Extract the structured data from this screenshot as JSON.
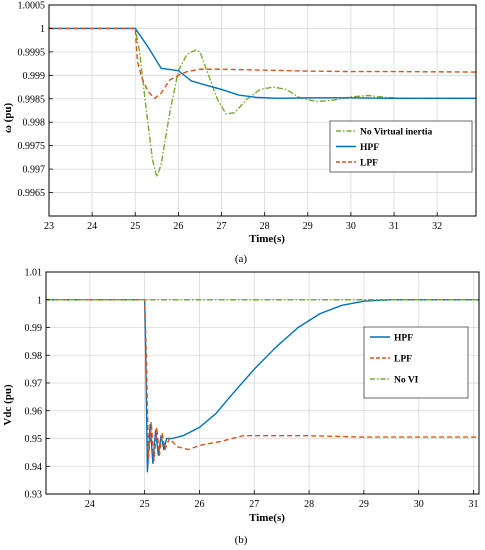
{
  "chart_data": [
    {
      "type": "line",
      "caption": "(a)",
      "xlabel": "Time(s)",
      "ylabel": "ω (pu)",
      "xlim": [
        23,
        32.9
      ],
      "ylim": [
        0.996,
        1.0005
      ],
      "xticks": [
        "23",
        "24",
        "25",
        "26",
        "27",
        "28",
        "29",
        "30",
        "31",
        "32"
      ],
      "yticks": [
        "0.9965",
        "0.997",
        "0.9975",
        "0.998",
        "0.9985",
        "0.999",
        "0.9995",
        "1",
        "1.0005"
      ],
      "grid": true,
      "legend_position": "right",
      "series": [
        {
          "name": "No Virtual inertia",
          "color": "#77ac30",
          "style": "dash-dot",
          "points": [
            [
              23,
              1.0
            ],
            [
              25,
              1.0
            ],
            [
              25.1,
              0.9995
            ],
            [
              25.25,
              0.9983
            ],
            [
              25.4,
              0.9972
            ],
            [
              25.5,
              0.99683
            ],
            [
              25.6,
              0.9971
            ],
            [
              25.8,
              0.9982
            ],
            [
              26.0,
              0.9991
            ],
            [
              26.2,
              0.99945
            ],
            [
              26.4,
              0.99954
            ],
            [
              26.5,
              0.9995
            ],
            [
              26.7,
              0.999
            ],
            [
              26.9,
              0.9985
            ],
            [
              27.1,
              0.99818
            ],
            [
              27.3,
              0.9982
            ],
            [
              27.6,
              0.9985
            ],
            [
              27.9,
              0.9987
            ],
            [
              28.2,
              0.99875
            ],
            [
              28.5,
              0.9987
            ],
            [
              28.8,
              0.99853
            ],
            [
              29.2,
              0.99844
            ],
            [
              29.6,
              0.99847
            ],
            [
              30.0,
              0.99854
            ],
            [
              30.4,
              0.99857
            ],
            [
              30.8,
              0.99853
            ],
            [
              31.2,
              0.99851
            ],
            [
              32.9,
              0.99851
            ]
          ]
        },
        {
          "name": "HPF",
          "color": "#0072bd",
          "style": "solid",
          "points": [
            [
              23,
              1.0
            ],
            [
              25,
              1.0
            ],
            [
              25.3,
              0.9996
            ],
            [
              25.6,
              0.99915
            ],
            [
              26.0,
              0.9991
            ],
            [
              26.3,
              0.99888
            ],
            [
              26.6,
              0.9988
            ],
            [
              27.0,
              0.9987
            ],
            [
              27.4,
              0.99858
            ],
            [
              27.8,
              0.99853
            ],
            [
              28.3,
              0.99851
            ],
            [
              29.0,
              0.99852
            ],
            [
              30.0,
              0.99852
            ],
            [
              31.0,
              0.99851
            ],
            [
              32.9,
              0.99851
            ]
          ]
        },
        {
          "name": "LPF",
          "color": "#d95319",
          "style": "dash",
          "points": [
            [
              23,
              1.0
            ],
            [
              25,
              1.0
            ],
            [
              25.05,
              0.9993
            ],
            [
              25.15,
              0.99895
            ],
            [
              25.3,
              0.99865
            ],
            [
              25.45,
              0.99851
            ],
            [
              25.6,
              0.99862
            ],
            [
              25.8,
              0.9989
            ],
            [
              26.0,
              0.999
            ],
            [
              26.2,
              0.99908
            ],
            [
              26.5,
              0.99913
            ],
            [
              27.0,
              0.99913
            ],
            [
              28.0,
              0.99911
            ],
            [
              29.0,
              0.99909
            ],
            [
              30.0,
              0.99908
            ],
            [
              31.0,
              0.99908
            ],
            [
              32.9,
              0.99907
            ]
          ]
        }
      ]
    },
    {
      "type": "line",
      "caption": "(b)",
      "xlabel": "Time(s)",
      "ylabel": "Vdc (pu)",
      "xlim": [
        23.2,
        31.1
      ],
      "ylim": [
        0.93,
        1.01
      ],
      "xticks": [
        "24",
        "25",
        "26",
        "27",
        "28",
        "29",
        "30",
        "31"
      ],
      "yticks": [
        "0.93",
        "0.94",
        "0.95",
        "0.96",
        "0.97",
        "0.98",
        "0.99",
        "1",
        "1.01"
      ],
      "grid": true,
      "legend_position": "right",
      "series": [
        {
          "name": "HPF",
          "color": "#0072bd",
          "style": "solid",
          "points": [
            [
              23.2,
              1.0
            ],
            [
              25.0,
              1.0
            ],
            [
              25.02,
              0.98
            ],
            [
              25.05,
              0.938
            ],
            [
              25.1,
              0.955
            ],
            [
              25.15,
              0.941
            ],
            [
              25.2,
              0.953
            ],
            [
              25.25,
              0.944
            ],
            [
              25.3,
              0.951
            ],
            [
              25.35,
              0.946
            ],
            [
              25.4,
              0.95
            ],
            [
              25.5,
              0.95
            ],
            [
              25.7,
              0.951
            ],
            [
              26.0,
              0.954
            ],
            [
              26.3,
              0.959
            ],
            [
              26.6,
              0.966
            ],
            [
              27.0,
              0.975
            ],
            [
              27.4,
              0.983
            ],
            [
              27.8,
              0.99
            ],
            [
              28.2,
              0.995
            ],
            [
              28.6,
              0.998
            ],
            [
              29.0,
              0.9995
            ],
            [
              29.5,
              1.0
            ],
            [
              31.1,
              1.0
            ]
          ]
        },
        {
          "name": "LPF",
          "color": "#d95319",
          "style": "dash",
          "points": [
            [
              23.2,
              1.0
            ],
            [
              25.0,
              1.0
            ],
            [
              25.03,
              0.98
            ],
            [
              25.07,
              0.943
            ],
            [
              25.12,
              0.956
            ],
            [
              25.17,
              0.942
            ],
            [
              25.22,
              0.954
            ],
            [
              25.27,
              0.944
            ],
            [
              25.32,
              0.952
            ],
            [
              25.37,
              0.946
            ],
            [
              25.45,
              0.95
            ],
            [
              25.6,
              0.947
            ],
            [
              25.8,
              0.946
            ],
            [
              26.0,
              0.9475
            ],
            [
              26.4,
              0.949
            ],
            [
              26.8,
              0.951
            ],
            [
              27.2,
              0.951
            ],
            [
              28.0,
              0.951
            ],
            [
              29.0,
              0.9505
            ],
            [
              30.0,
              0.9505
            ],
            [
              31.1,
              0.9505
            ]
          ]
        },
        {
          "name": "No VI",
          "color": "#77ac30",
          "style": "dash-dot",
          "points": [
            [
              23.2,
              1.0
            ],
            [
              31.1,
              1.0
            ]
          ]
        }
      ]
    }
  ]
}
